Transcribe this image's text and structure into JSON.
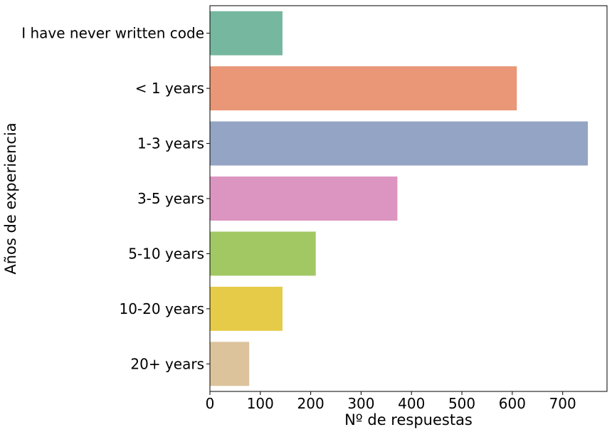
{
  "chart_data": {
    "type": "bar",
    "orientation": "horizontal",
    "categories": [
      "I have never written code",
      "< 1 years",
      "1-3 years",
      "3-5 years",
      "5-10 years",
      "10-20 years",
      "20+ years"
    ],
    "values": [
      144,
      609,
      750,
      372,
      210,
      144,
      78
    ],
    "colors": [
      "#76b7a0",
      "#e99776",
      "#94a4c4",
      "#dc94c0",
      "#a2c864",
      "#e5cb47",
      "#dcc39c"
    ],
    "title": "",
    "xlabel": "Nº de respuestas",
    "ylabel": "Años de experiencia",
    "xlim": [
      0,
      788
    ],
    "xticks": [
      0,
      100,
      200,
      300,
      400,
      500,
      600,
      700
    ],
    "grid": false,
    "legend": "none"
  }
}
